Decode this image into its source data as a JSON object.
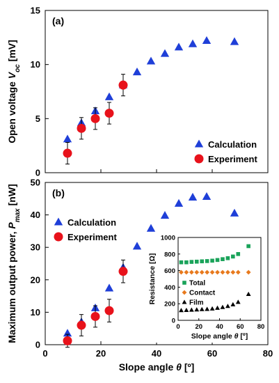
{
  "chart_data": [
    {
      "type": "scatter",
      "panel_label": "(a)",
      "xlim": [
        0,
        80
      ],
      "ylim": [
        0,
        15
      ],
      "xticks": [
        0,
        20,
        40,
        60,
        80
      ],
      "yticks": [
        0,
        5,
        10,
        15
      ],
      "show_x_ticklabels": false,
      "xlabel": "",
      "ylabel": "Open voltage V_oc [mV]",
      "ylabel_parts": {
        "main": "Open voltage ",
        "var": "V",
        "sub": "oc",
        "unit": " [mV]"
      },
      "legend_position": "bottom-right",
      "series": [
        {
          "name": "Calculation",
          "marker": "triangle",
          "color": "#1f3fd8",
          "x": [
            8,
            13,
            18,
            23,
            28,
            33,
            38,
            43,
            48,
            53,
            58,
            68
          ],
          "y": [
            3.1,
            4.6,
            5.7,
            7.0,
            8.1,
            9.3,
            10.3,
            11.0,
            11.6,
            11.9,
            12.2,
            12.1
          ]
        },
        {
          "name": "Experiment",
          "marker": "circle",
          "color": "#e8121b",
          "x": [
            8,
            13,
            18,
            23,
            28
          ],
          "y": [
            1.8,
            4.1,
            5.0,
            5.5,
            8.1
          ],
          "err": [
            1.0,
            1.0,
            1.0,
            1.0,
            1.0
          ]
        }
      ]
    },
    {
      "type": "scatter",
      "panel_label": "(b)",
      "xlim": [
        0,
        80
      ],
      "ylim": [
        0,
        50
      ],
      "xticks": [
        0,
        20,
        40,
        60,
        80
      ],
      "yticks": [
        0,
        10,
        20,
        30,
        40,
        50
      ],
      "show_x_ticklabels": true,
      "xlabel": "Slope angle θ [º]",
      "xlabel_parts": {
        "main": "Slope angle ",
        "var": "θ",
        "unit": " [º]"
      },
      "ylabel": "Maximum output power, P_max [nW]",
      "ylabel_parts": {
        "main": "Maximum output power, ",
        "var": "P",
        "sub": "max",
        "unit": " [nW]"
      },
      "legend_position": "top-left",
      "series": [
        {
          "name": "Calculation",
          "marker": "triangle",
          "color": "#1f3fd8",
          "x": [
            8,
            13,
            18,
            23,
            28,
            33,
            38,
            43,
            48,
            53,
            58,
            68
          ],
          "y": [
            3.5,
            7.0,
            11.3,
            17.4,
            23.8,
            30.3,
            35.8,
            39.8,
            43.5,
            45.4,
            45.6,
            40.5
          ]
        },
        {
          "name": "Experiment",
          "marker": "circle",
          "color": "#e8121b",
          "x": [
            8,
            13,
            18,
            23,
            28
          ],
          "y": [
            1.2,
            6.0,
            8.7,
            10.5,
            22.6
          ],
          "err": [
            2.0,
            3.3,
            3.3,
            3.5,
            3.5
          ]
        }
      ]
    },
    {
      "type": "scatter",
      "inset": true,
      "xlim": [
        0,
        80
      ],
      "ylim": [
        0,
        1000
      ],
      "xticks": [
        0,
        20,
        40,
        60,
        80
      ],
      "yticks": [
        0,
        200,
        400,
        600,
        800,
        1000
      ],
      "xlabel": "Slope angle θ [º]",
      "xlabel_parts": {
        "main": "Slope angle ",
        "var": "θ",
        "unit": " [º]"
      },
      "ylabel": "Resistance [Ω]",
      "legend_position": "bottom-left",
      "series": [
        {
          "name": "Total",
          "marker": "square",
          "color": "#1aa35a",
          "x": [
            3,
            8,
            13,
            18,
            23,
            28,
            33,
            38,
            43,
            48,
            53,
            58,
            68
          ],
          "y": [
            700,
            700,
            705,
            708,
            712,
            715,
            720,
            728,
            738,
            750,
            770,
            800,
            895
          ]
        },
        {
          "name": "Contact",
          "marker": "diamond",
          "color": "#e87a1e",
          "x": [
            3,
            8,
            13,
            18,
            23,
            28,
            33,
            38,
            43,
            48,
            53,
            58,
            68
          ],
          "y": [
            580,
            580,
            580,
            580,
            580,
            580,
            580,
            580,
            580,
            580,
            580,
            580,
            580
          ]
        },
        {
          "name": "Film",
          "marker": "triangle",
          "color": "#000000",
          "x": [
            3,
            8,
            13,
            18,
            23,
            28,
            33,
            38,
            43,
            48,
            53,
            58,
            68
          ],
          "y": [
            120,
            122,
            125,
            128,
            132,
            135,
            140,
            148,
            158,
            170,
            190,
            220,
            315
          ]
        }
      ]
    }
  ]
}
